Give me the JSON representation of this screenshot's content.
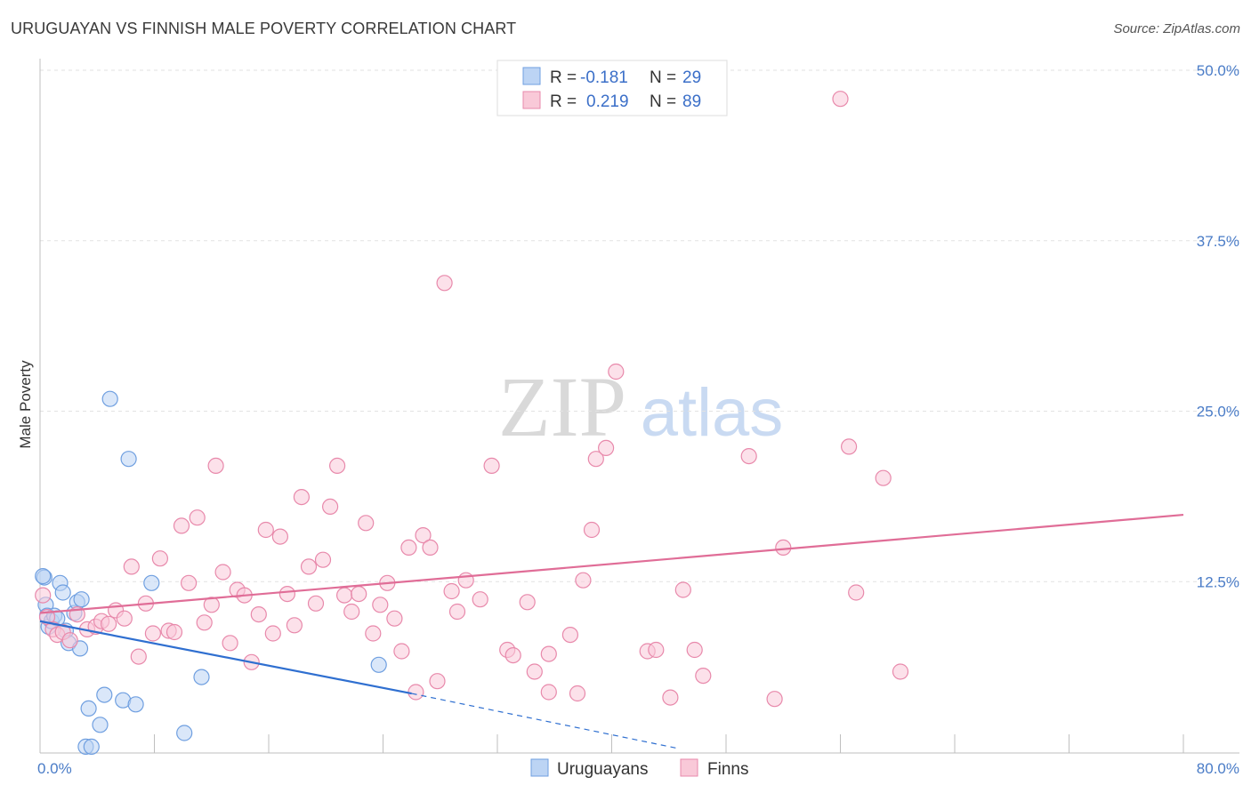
{
  "header": {
    "title": "URUGUAYAN VS FINNISH MALE POVERTY CORRELATION CHART",
    "source": "Source: ZipAtlas.com"
  },
  "watermark": {
    "zip": "ZIP",
    "atlas": "atlas"
  },
  "legend": {
    "rows": [
      {
        "r_label": "R = ",
        "r_value": "-0.181",
        "n_label": "N = ",
        "n_value": "29",
        "color": "#6f9fe0",
        "fill": "#bcd4f4"
      },
      {
        "r_label": "R = ",
        "r_value": "0.219",
        "n_label": "N = ",
        "n_value": "89",
        "color": "#e889ab",
        "fill": "#f9c9d8"
      }
    ]
  },
  "bottom_legend": [
    {
      "label": "Uruguayans",
      "color": "#6f9fe0",
      "fill": "#bcd4f4"
    },
    {
      "label": "Finns",
      "color": "#e889ab",
      "fill": "#f9c9d8"
    }
  ],
  "chart_data": {
    "type": "scatter",
    "title": "URUGUAYAN VS FINNISH MALE POVERTY CORRELATION CHART",
    "xlabel": "",
    "ylabel": "Male Poverty",
    "xlim": [
      0,
      80
    ],
    "ylim": [
      0,
      50
    ],
    "x_tick_labels": [
      {
        "value": 0,
        "label": "0.0%"
      },
      {
        "value": 80,
        "label": "80.0%"
      }
    ],
    "x_minor_ticks": [
      8,
      16,
      24,
      32,
      40,
      48,
      56,
      64,
      72,
      80
    ],
    "y_tick_labels": [
      {
        "value": 12.5,
        "label": "12.5%"
      },
      {
        "value": 25,
        "label": "25.0%"
      },
      {
        "value": 37.5,
        "label": "37.5%"
      },
      {
        "value": 50,
        "label": "50.0%"
      }
    ],
    "grid": "horizontal dashed",
    "legend_position": "top-center",
    "series": [
      {
        "name": "Uruguayans",
        "color": "#6f9fe0",
        "fill": "#bcd4f4",
        "trend": {
          "x0": 0,
          "y0": 9.6,
          "x1": 26,
          "y1": 4.3,
          "dash_to_x": 44.5,
          "dash_to_y": 0.3
        },
        "points": [
          [
            0.3,
            12.8
          ],
          [
            0.4,
            10.8
          ],
          [
            0.5,
            10.0
          ],
          [
            0.6,
            9.2
          ],
          [
            0.8,
            9.6
          ],
          [
            1.0,
            10.0
          ],
          [
            1.2,
            9.8
          ],
          [
            1.4,
            12.4
          ],
          [
            1.6,
            11.7
          ],
          [
            1.8,
            8.9
          ],
          [
            2.0,
            8.0
          ],
          [
            2.4,
            10.2
          ],
          [
            2.6,
            11.0
          ],
          [
            2.8,
            7.6
          ],
          [
            2.9,
            11.2
          ],
          [
            3.2,
            0.4
          ],
          [
            3.4,
            3.2
          ],
          [
            3.6,
            0.4
          ],
          [
            4.2,
            2.0
          ],
          [
            4.5,
            4.2
          ],
          [
            4.9,
            25.9
          ],
          [
            5.8,
            3.8
          ],
          [
            6.2,
            21.5
          ],
          [
            6.7,
            3.5
          ],
          [
            7.8,
            12.4
          ],
          [
            10.1,
            1.4
          ],
          [
            11.3,
            5.5
          ],
          [
            23.7,
            6.4
          ],
          [
            0.2,
            12.9
          ]
        ]
      },
      {
        "name": "Finns",
        "color": "#e889ab",
        "fill": "#f9c9d8",
        "trend": {
          "x0": 0,
          "y0": 10.2,
          "x1": 80,
          "y1": 17.4
        },
        "points": [
          [
            0.2,
            11.5
          ],
          [
            0.5,
            9.9
          ],
          [
            0.9,
            9.0
          ],
          [
            1.2,
            8.6
          ],
          [
            1.6,
            8.8
          ],
          [
            2.1,
            8.2
          ],
          [
            2.6,
            10.1
          ],
          [
            3.3,
            9.0
          ],
          [
            3.9,
            9.2
          ],
          [
            4.3,
            9.6
          ],
          [
            4.8,
            9.4
          ],
          [
            5.3,
            10.4
          ],
          [
            5.9,
            9.8
          ],
          [
            6.4,
            13.6
          ],
          [
            6.9,
            7.0
          ],
          [
            7.4,
            10.9
          ],
          [
            7.9,
            8.7
          ],
          [
            8.4,
            14.2
          ],
          [
            9.0,
            8.9
          ],
          [
            9.4,
            8.8
          ],
          [
            9.9,
            16.6
          ],
          [
            10.4,
            12.4
          ],
          [
            11.0,
            17.2
          ],
          [
            11.5,
            9.5
          ],
          [
            12.0,
            10.8
          ],
          [
            12.3,
            21.0
          ],
          [
            12.8,
            13.2
          ],
          [
            13.3,
            8.0
          ],
          [
            13.8,
            11.9
          ],
          [
            14.3,
            11.5
          ],
          [
            14.8,
            6.6
          ],
          [
            15.3,
            10.1
          ],
          [
            15.8,
            16.3
          ],
          [
            16.3,
            8.7
          ],
          [
            16.8,
            15.8
          ],
          [
            17.3,
            11.6
          ],
          [
            17.8,
            9.3
          ],
          [
            18.3,
            18.7
          ],
          [
            18.8,
            13.6
          ],
          [
            19.3,
            10.9
          ],
          [
            19.8,
            14.1
          ],
          [
            20.3,
            18.0
          ],
          [
            20.8,
            21.0
          ],
          [
            21.3,
            11.5
          ],
          [
            21.8,
            10.3
          ],
          [
            22.3,
            11.6
          ],
          [
            22.8,
            16.8
          ],
          [
            23.3,
            8.7
          ],
          [
            23.8,
            10.8
          ],
          [
            24.3,
            12.4
          ],
          [
            24.8,
            9.8
          ],
          [
            25.3,
            7.4
          ],
          [
            25.8,
            15.0
          ],
          [
            26.3,
            4.4
          ],
          [
            26.8,
            15.9
          ],
          [
            27.3,
            15.0
          ],
          [
            27.8,
            5.2
          ],
          [
            28.3,
            34.4
          ],
          [
            28.8,
            11.8
          ],
          [
            29.2,
            10.3
          ],
          [
            29.8,
            12.6
          ],
          [
            30.8,
            11.2
          ],
          [
            31.6,
            21.0
          ],
          [
            32.7,
            7.5
          ],
          [
            33.1,
            7.1
          ],
          [
            34.1,
            11.0
          ],
          [
            34.6,
            5.9
          ],
          [
            35.6,
            4.4
          ],
          [
            35.6,
            7.2
          ],
          [
            37.1,
            8.6
          ],
          [
            37.6,
            4.3
          ],
          [
            38.0,
            12.6
          ],
          [
            38.6,
            16.3
          ],
          [
            38.9,
            21.5
          ],
          [
            39.6,
            22.3
          ],
          [
            40.3,
            27.9
          ],
          [
            42.5,
            7.4
          ],
          [
            43.1,
            7.5
          ],
          [
            44.1,
            4.0
          ],
          [
            45.0,
            11.9
          ],
          [
            45.8,
            7.5
          ],
          [
            46.4,
            5.6
          ],
          [
            49.6,
            21.7
          ],
          [
            51.4,
            3.9
          ],
          [
            52.0,
            15.0
          ],
          [
            56.6,
            22.4
          ],
          [
            57.1,
            11.7
          ],
          [
            59.0,
            20.1
          ],
          [
            60.2,
            5.9
          ],
          [
            56.0,
            47.9
          ]
        ]
      }
    ]
  },
  "axes": {
    "ylabel": "Male Poverty",
    "x_left": "0.0%",
    "x_right": "80.0%"
  }
}
